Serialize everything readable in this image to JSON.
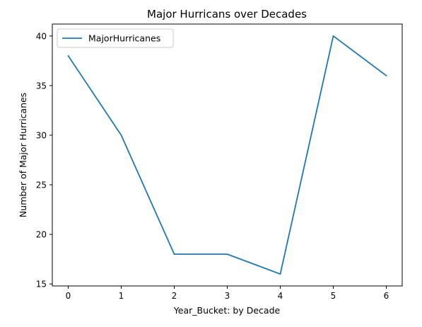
{
  "chart_data": {
    "type": "line",
    "title": "Major Hurricans over Decades",
    "xlabel": "Year_Bucket: by Decade",
    "ylabel": "Number of Major Hurricanes",
    "x": [
      0,
      1,
      2,
      3,
      4,
      5,
      6
    ],
    "xticks": [
      "0",
      "1",
      "2",
      "3",
      "4",
      "5",
      "6"
    ],
    "yticks": [
      "15",
      "20",
      "25",
      "30",
      "35",
      "40"
    ],
    "xlim": [
      -0.3,
      6.3
    ],
    "ylim": [
      14.8,
      41.2
    ],
    "grid": false,
    "legend_position": "upper-left",
    "series": [
      {
        "name": "MajorHurricanes",
        "color": "#1f77b4",
        "values": [
          38,
          30,
          18,
          18,
          16,
          40,
          36
        ]
      }
    ]
  }
}
